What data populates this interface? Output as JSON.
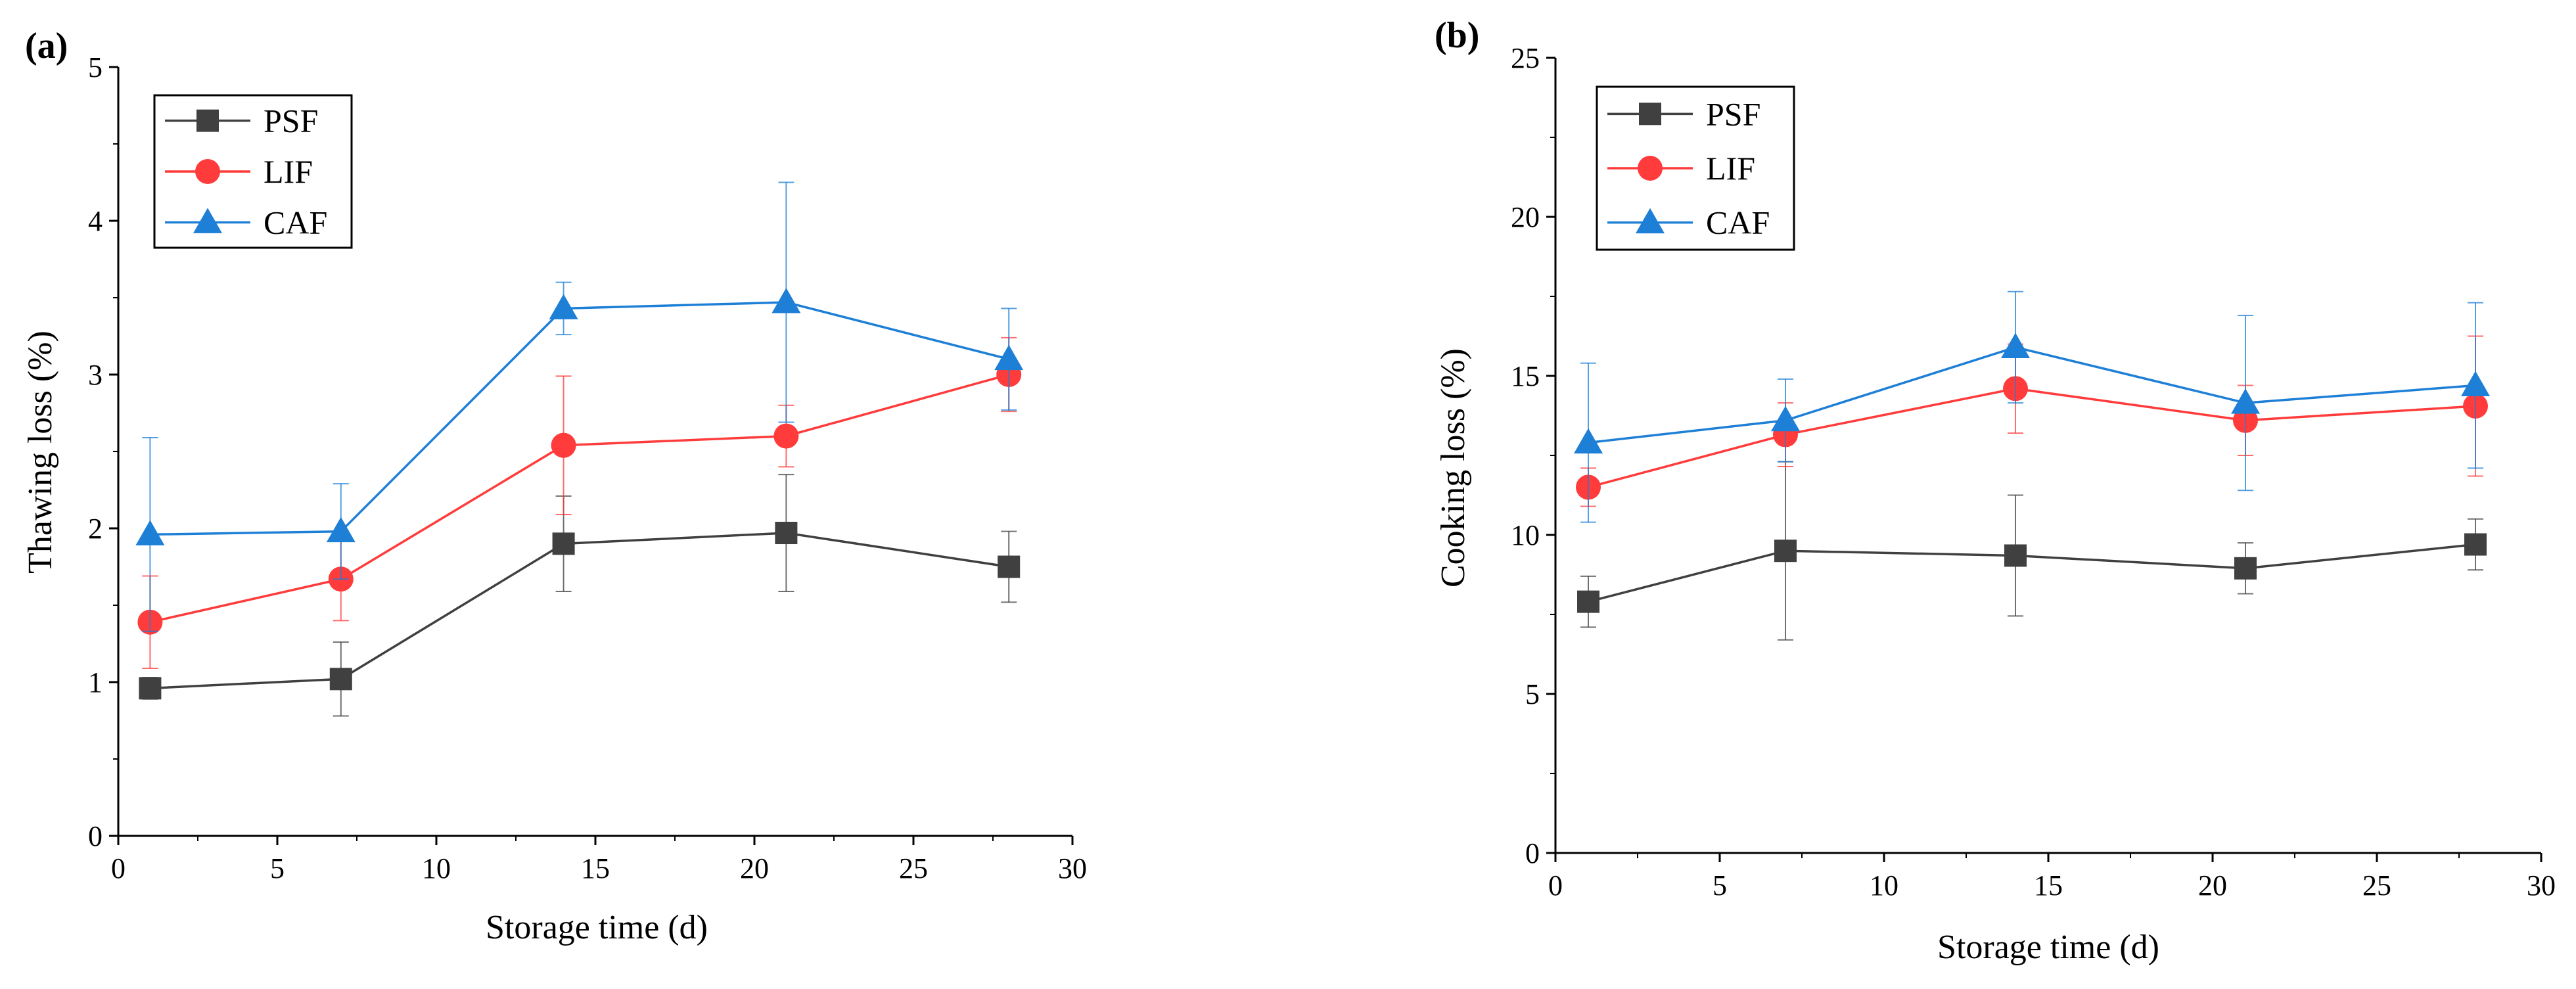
{
  "chart_data": [
    {
      "type": "line",
      "panel_label": "(a)",
      "xlabel": "Storage time (d)",
      "ylabel": "Thawing loss (%)",
      "xlim": [
        0,
        30
      ],
      "ylim": [
        0,
        5
      ],
      "xticks": [
        0,
        5,
        10,
        15,
        20,
        25,
        30
      ],
      "yticks": [
        0,
        1,
        2,
        3,
        4,
        5
      ],
      "x": [
        1,
        7,
        14,
        21,
        28
      ],
      "legend_position": "top-left",
      "series": [
        {
          "name": "PSF",
          "color": "#404040",
          "marker": "square",
          "values": [
            0.96,
            1.02,
            1.9,
            1.97,
            1.75
          ],
          "errors": [
            0.07,
            0.24,
            0.31,
            0.38,
            0.23
          ]
        },
        {
          "name": "LIF",
          "color": "#ff3b3b",
          "marker": "circle",
          "values": [
            1.39,
            1.67,
            2.54,
            2.6,
            3.0
          ],
          "errors": [
            0.3,
            0.27,
            0.45,
            0.2,
            0.24
          ]
        },
        {
          "name": "CAF",
          "color": "#1e7fd6",
          "marker": "triangle",
          "values": [
            1.96,
            1.98,
            3.43,
            3.47,
            3.1
          ],
          "errors": [
            0.63,
            0.31,
            0.17,
            0.78,
            0.33
          ]
        }
      ]
    },
    {
      "type": "line",
      "panel_label": "(b)",
      "xlabel": "Storage time (d)",
      "ylabel": "Cooking loss (%)",
      "xlim": [
        0,
        30
      ],
      "ylim": [
        0,
        25
      ],
      "xticks": [
        0,
        5,
        10,
        15,
        20,
        25,
        30
      ],
      "yticks": [
        0,
        5,
        10,
        15,
        20,
        25
      ],
      "x": [
        1,
        7,
        14,
        21,
        28
      ],
      "legend_position": "top-left",
      "series": [
        {
          "name": "PSF",
          "color": "#404040",
          "marker": "square",
          "values": [
            7.9,
            9.5,
            9.35,
            8.95,
            9.7
          ],
          "errors": [
            0.8,
            2.8,
            1.9,
            0.8,
            0.8
          ]
        },
        {
          "name": "LIF",
          "color": "#ff3b3b",
          "marker": "circle",
          "values": [
            11.5,
            13.15,
            14.6,
            13.6,
            14.05
          ],
          "errors": [
            0.6,
            1.0,
            1.4,
            1.1,
            2.2
          ]
        },
        {
          "name": "CAF",
          "color": "#1e7fd6",
          "marker": "triangle",
          "values": [
            12.9,
            13.6,
            15.9,
            14.15,
            14.7
          ],
          "errors": [
            2.5,
            1.3,
            1.75,
            2.75,
            2.6
          ]
        }
      ]
    }
  ]
}
